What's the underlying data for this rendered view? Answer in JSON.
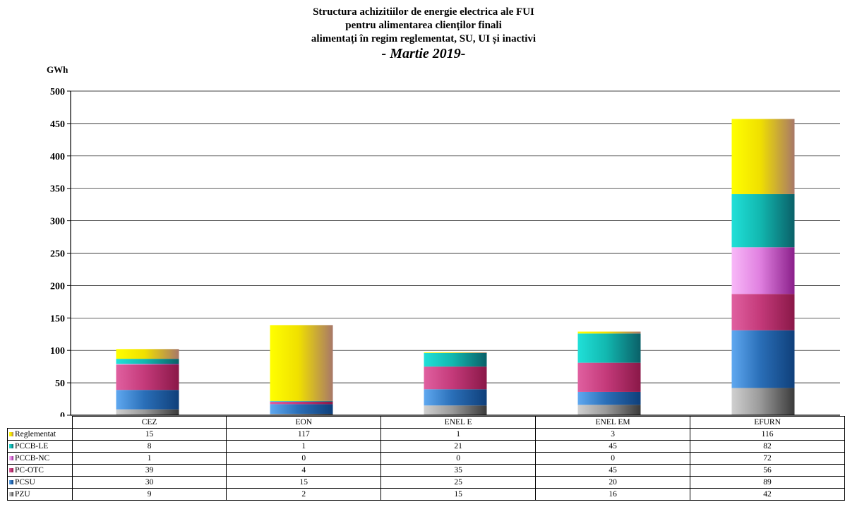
{
  "chart_data": {
    "type": "bar",
    "stacked": true,
    "title_lines": [
      "Structura achizitiilor de energie electrica ale FUI",
      "pentru alimentarea clienților finali",
      "alimentați în regim reglementat, SU, UI și inactivi"
    ],
    "subtitle": "- Martie 2019-",
    "ylabel": "GWh",
    "ylim": [
      0,
      500
    ],
    "yticks": [
      0,
      50,
      100,
      150,
      200,
      250,
      300,
      350,
      400,
      450,
      500
    ],
    "grid": true,
    "categories": [
      "CEZ",
      "EON",
      "ENEL E",
      "ENEL EM",
      "EFURN"
    ],
    "series": [
      {
        "name": "PZU",
        "values": [
          9,
          2,
          15,
          16,
          42
        ],
        "color": "#9a9a9a",
        "light": "#d0d0d0",
        "dark": "#3a3a3a"
      },
      {
        "name": "PCSU",
        "values": [
          30,
          15,
          25,
          20,
          89
        ],
        "color": "#2a6fb8",
        "light": "#5fa8f0",
        "dark": "#0f3f7a"
      },
      {
        "name": "PC-OTC",
        "values": [
          39,
          4,
          35,
          45,
          56
        ],
        "color": "#c43a7a",
        "light": "#e060a0",
        "dark": "#8a1848"
      },
      {
        "name": "PCCB-NC",
        "values": [
          1,
          0,
          0,
          0,
          72
        ],
        "color": "#e080e0",
        "light": "#f8b8f8",
        "dark": "#8a1f8a"
      },
      {
        "name": "PCCB-LE",
        "values": [
          8,
          1,
          21,
          45,
          82
        ],
        "color": "#12b8b0",
        "light": "#20e0d8",
        "dark": "#0a6068"
      },
      {
        "name": "Reglementat",
        "values": [
          15,
          117,
          1,
          3,
          116
        ],
        "color": "#f0e000",
        "light": "#ffff00",
        "dark": "#a87868"
      }
    ],
    "table_row_order": [
      "Reglementat",
      "PCCB-LE",
      "PCCB-NC",
      "PC-OTC",
      "PCSU",
      "PZU"
    ]
  }
}
